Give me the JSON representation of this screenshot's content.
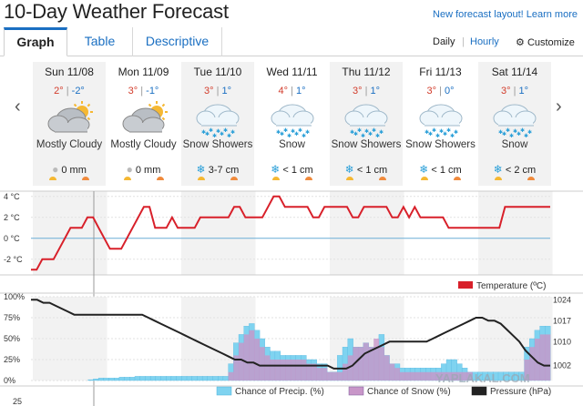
{
  "header": {
    "title": "10-Day Weather Forecast",
    "layout_link": "New forecast layout! Learn more"
  },
  "tabs": [
    {
      "label": "Graph",
      "active": true
    },
    {
      "label": "Table",
      "active": false
    },
    {
      "label": "Descriptive",
      "active": false
    }
  ],
  "controls": {
    "daily": "Daily",
    "hourly": "Hourly",
    "customize": "Customize",
    "customize_icon": "gear-icon"
  },
  "days": [
    {
      "label": "Sun 11/08",
      "high": "2°",
      "low": "-2°",
      "icon": "partly-cloudy-icon",
      "condition": "Mostly Cloudy",
      "precip": "0 mm",
      "precip_icon": "rain-drop-icon"
    },
    {
      "label": "Mon 11/09",
      "high": "3°",
      "low": "-1°",
      "icon": "partly-cloudy-icon",
      "condition": "Mostly Cloudy",
      "precip": "0 mm",
      "precip_icon": "rain-drop-icon"
    },
    {
      "label": "Tue 11/10",
      "high": "3°",
      "low": "1°",
      "icon": "snow-icon",
      "condition": "Snow Showers",
      "precip": "3-7 cm",
      "precip_icon": "snowflake-icon"
    },
    {
      "label": "Wed 11/11",
      "high": "4°",
      "low": "1°",
      "icon": "snow-icon",
      "condition": "Snow",
      "precip": "< 1 cm",
      "precip_icon": "snowflake-icon"
    },
    {
      "label": "Thu 11/12",
      "high": "3°",
      "low": "1°",
      "icon": "snow-icon",
      "condition": "Snow Showers",
      "precip": "< 1 cm",
      "precip_icon": "snowflake-icon"
    },
    {
      "label": "Fri 11/13",
      "high": "3°",
      "low": "0°",
      "icon": "snow-icon",
      "condition": "Snow Showers",
      "precip": "< 1 cm",
      "precip_icon": "snowflake-icon"
    },
    {
      "label": "Sat 11/14",
      "high": "3°",
      "low": "1°",
      "icon": "snow-icon",
      "condition": "Snow",
      "precip": "< 2 cm",
      "precip_icon": "snowflake-icon"
    }
  ],
  "colors": {
    "temperature": "#d8202a",
    "precip": "#7fd3f0",
    "snow": "#c896c8",
    "pressure": "#222222",
    "link": "#1a6fc2",
    "zero_line": "#6aaed6"
  },
  "chart_data": [
    {
      "type": "line",
      "series": [
        {
          "name": "Temperature (ºC)",
          "values": [
            -3,
            -3,
            -2,
            -2,
            -2,
            -1,
            0,
            1,
            1,
            1,
            2,
            2,
            1,
            0,
            -1,
            -1,
            -1,
            0,
            1,
            2,
            3,
            3,
            1,
            1,
            1,
            2,
            1,
            1,
            1,
            1,
            2,
            2,
            2,
            2,
            2,
            2,
            3,
            3,
            2,
            2,
            2,
            2,
            3,
            4,
            4,
            3,
            3,
            3,
            3,
            3,
            2,
            2,
            3,
            3,
            3,
            3,
            3,
            2,
            2,
            3,
            3,
            3,
            3,
            3,
            2,
            2,
            3,
            2,
            3,
            2,
            2,
            2,
            2,
            2,
            1,
            1,
            1,
            1,
            1,
            1,
            1,
            1,
            1,
            1,
            3,
            3,
            3,
            3,
            3,
            3,
            3,
            3,
            3
          ]
        }
      ],
      "y_ticks": [
        "4 °C",
        "2 °C",
        "0 °C",
        "-2 °C"
      ],
      "ylim": [
        -3.5,
        4.5
      ]
    },
    {
      "type": "bar",
      "series": [
        {
          "name": "Chance of Precip. (%)",
          "values": [
            0,
            0,
            0,
            0,
            0,
            0,
            0,
            0,
            0,
            0,
            0,
            1,
            2,
            3,
            3,
            3,
            3,
            4,
            4,
            4,
            5,
            5,
            5,
            5,
            5,
            5,
            5,
            5,
            5,
            5,
            5,
            5,
            5,
            5,
            5,
            5,
            5,
            5,
            20,
            45,
            55,
            65,
            68,
            60,
            50,
            40,
            35,
            35,
            30,
            30,
            30,
            30,
            30,
            25,
            25,
            20,
            20,
            10,
            10,
            30,
            40,
            50,
            40,
            40,
            45,
            40,
            40,
            55,
            30,
            20,
            20,
            15,
            15,
            15,
            15,
            15,
            15,
            15,
            15,
            20,
            25,
            25,
            20,
            15,
            10,
            10,
            10,
            10,
            10,
            10,
            10,
            10,
            10,
            10,
            10,
            40,
            50,
            60,
            65,
            65
          ]
        },
        {
          "name": "Chance of Snow (%)",
          "values": [
            0,
            0,
            0,
            0,
            0,
            0,
            0,
            0,
            0,
            0,
            0,
            0,
            0,
            0,
            0,
            0,
            0,
            0,
            0,
            0,
            0,
            0,
            0,
            0,
            0,
            0,
            0,
            0,
            0,
            0,
            0,
            0,
            0,
            0,
            0,
            0,
            0,
            0,
            10,
            30,
            45,
            55,
            60,
            50,
            40,
            30,
            25,
            25,
            25,
            25,
            25,
            25,
            25,
            20,
            20,
            15,
            15,
            10,
            10,
            10,
            20,
            30,
            40,
            40,
            45,
            40,
            50,
            40,
            30,
            20,
            15,
            10,
            10,
            10,
            10,
            10,
            10,
            10,
            10,
            10,
            10,
            10,
            10,
            10,
            10,
            0,
            0,
            0,
            0,
            0,
            0,
            0,
            0,
            0,
            0,
            25,
            40,
            50,
            55,
            55
          ]
        }
      ],
      "y_ticks_left": [
        "100%",
        "75%",
        "50%",
        "25%",
        "0%"
      ],
      "ylim": [
        0,
        100
      ]
    },
    {
      "type": "line",
      "series": [
        {
          "name": "Pressure (hPa)",
          "values": [
            1024,
            1024,
            1023,
            1023,
            1022,
            1021,
            1020,
            1019,
            1019,
            1019,
            1019,
            1019,
            1019,
            1019,
            1019,
            1019,
            1019,
            1019,
            1019,
            1018,
            1017,
            1016,
            1015,
            1014,
            1013,
            1012,
            1011,
            1010,
            1009,
            1008,
            1007,
            1006,
            1005,
            1004,
            1004,
            1003,
            1003,
            1002,
            1002,
            1002,
            1002,
            1002,
            1002,
            1002,
            1002,
            1002,
            1002,
            1002,
            1002,
            1001,
            1001,
            1001,
            1002,
            1004,
            1006,
            1007,
            1008,
            1009,
            1010,
            1010,
            1010,
            1010,
            1010,
            1010,
            1010,
            1011,
            1012,
            1013,
            1014,
            1015,
            1016,
            1017,
            1018,
            1018,
            1017,
            1017,
            1016,
            1014,
            1012,
            1010,
            1007,
            1005,
            1003,
            1002,
            1002
          ]
        }
      ],
      "y_ticks_right": [
        "1024",
        "1017",
        "1010",
        "1002"
      ],
      "ylim": [
        997,
        1025
      ]
    }
  ],
  "chart_labels": {
    "temp_legend": "Temperature (ºC)",
    "precip_legend": "Chance of Precip. (%)",
    "snow_legend": "Chance of Snow (%)",
    "pressure_legend": "Pressure (hPa)",
    "watermark": "YAPLAKAL.COM",
    "bottom_tick": "25"
  }
}
